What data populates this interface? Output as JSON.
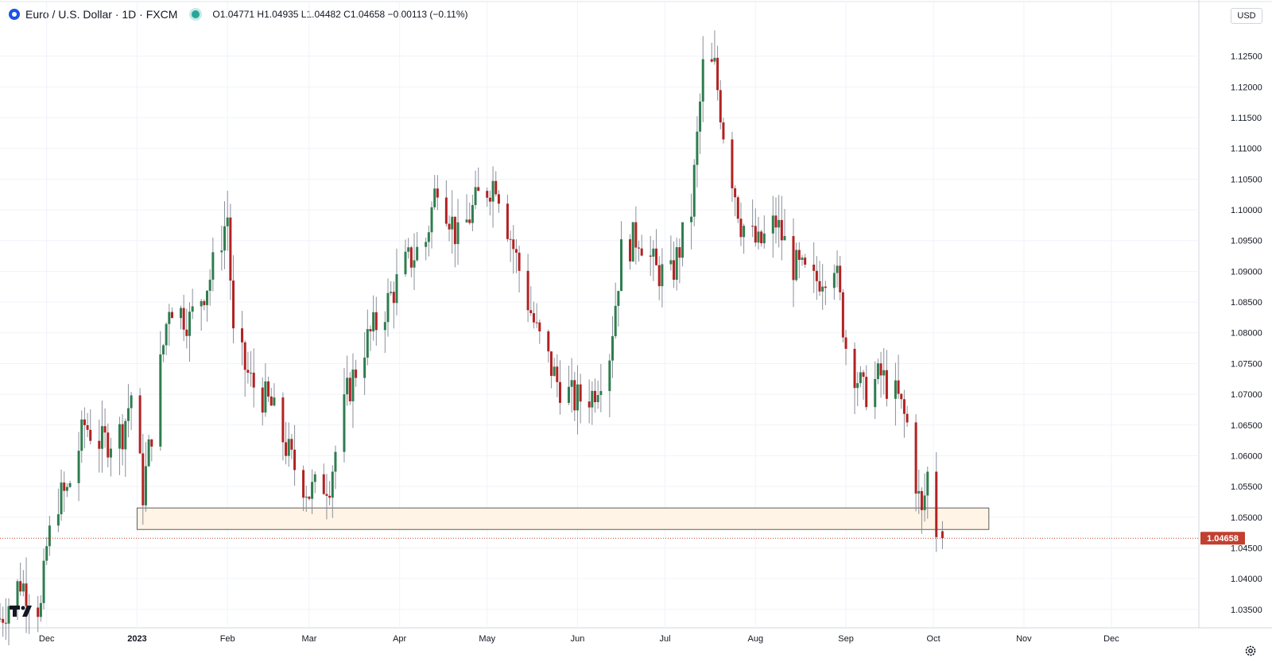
{
  "header": {
    "symbol": "Euro / U.S. Dollar · 1D · FXCM",
    "ohlc": "O1.04771  H1.04935  L1.04482  C1.04658  −0.00113 (−0.11%)"
  },
  "price_scale": {
    "currency": "USD"
  },
  "colors": {
    "up": "#26a69a",
    "down": "#ef5350",
    "up_body": "#2e7d4f",
    "down_body": "#b22222",
    "zone_fill": "#fff4e5",
    "last_price": "#c1402f"
  },
  "icons": {
    "logo": "tradingview-logo-icon",
    "settings": "gear-icon",
    "status": "market-status-dot"
  },
  "chart_data": {
    "type": "candlestick",
    "title": "Euro / U.S. Dollar · 1D · FXCM",
    "last_price": 1.04658,
    "last_price_label": "1.04658",
    "ylim": [
      1.032,
      1.13
    ],
    "y_ticks": [
      1.035,
      1.04,
      1.045,
      1.05,
      1.055,
      1.06,
      1.065,
      1.07,
      1.075,
      1.08,
      1.085,
      1.09,
      1.095,
      1.1,
      1.105,
      1.11,
      1.115,
      1.12,
      1.125
    ],
    "y_tick_labels": [
      "1.03500",
      "1.04000",
      "1.04500",
      "1.05000",
      "1.05500",
      "1.06000",
      "1.06500",
      "1.07000",
      "1.07500",
      "1.08000",
      "1.08500",
      "1.09000",
      "1.09500",
      "1.10000",
      "1.10500",
      "1.11000",
      "1.11500",
      "1.12000",
      "1.12500"
    ],
    "x_labels": [
      {
        "label": "Dec",
        "date": "2022-12-01"
      },
      {
        "label": "2023",
        "date": "2023-01-01"
      },
      {
        "label": "Feb",
        "date": "2023-02-01"
      },
      {
        "label": "Mar",
        "date": "2023-03-01"
      },
      {
        "label": "Apr",
        "date": "2023-04-01"
      },
      {
        "label": "May",
        "date": "2023-05-01"
      },
      {
        "label": "Jun",
        "date": "2023-06-01"
      },
      {
        "label": "Jul",
        "date": "2023-07-01"
      },
      {
        "label": "Aug",
        "date": "2023-08-01"
      },
      {
        "label": "Sep",
        "date": "2023-09-01"
      },
      {
        "label": "Oct",
        "date": "2023-10-01"
      },
      {
        "label": "Nov",
        "date": "2023-11-01"
      },
      {
        "label": "Dec",
        "date": "2023-12-01"
      }
    ],
    "x_range": [
      "2022-11-15",
      "2023-12-31"
    ],
    "support_zone": {
      "start": "2023-01-01",
      "end": "2023-10-20",
      "low": 1.048,
      "high": 1.0515
    },
    "close_series": [
      {
        "date": "2022-11-15",
        "close": 1.0335
      },
      {
        "date": "2022-11-22",
        "close": 1.0395
      },
      {
        "date": "2022-11-29",
        "close": 1.035
      },
      {
        "date": "2022-12-01",
        "close": 1.045
      },
      {
        "date": "2022-12-05",
        "close": 1.053
      },
      {
        "date": "2022-12-08",
        "close": 1.054
      },
      {
        "date": "2022-12-14",
        "close": 1.065
      },
      {
        "date": "2022-12-20",
        "close": 1.062
      },
      {
        "date": "2022-12-27",
        "close": 1.064
      },
      {
        "date": "2022-12-30",
        "close": 1.07
      },
      {
        "date": "2023-01-03",
        "close": 1.054
      },
      {
        "date": "2023-01-06",
        "close": 1.064
      },
      {
        "date": "2023-01-12",
        "close": 1.085
      },
      {
        "date": "2023-01-19",
        "close": 1.082
      },
      {
        "date": "2023-01-26",
        "close": 1.089
      },
      {
        "date": "2023-02-01",
        "close": 1.099
      },
      {
        "date": "2023-02-03",
        "close": 1.079
      },
      {
        "date": "2023-02-09",
        "close": 1.072
      },
      {
        "date": "2023-02-16",
        "close": 1.068
      },
      {
        "date": "2023-02-23",
        "close": 1.059
      },
      {
        "date": "2023-03-01",
        "close": 1.054
      },
      {
        "date": "2023-03-08",
        "close": 1.056
      },
      {
        "date": "2023-03-14",
        "close": 1.07
      },
      {
        "date": "2023-03-20",
        "close": 1.078
      },
      {
        "date": "2023-03-27",
        "close": 1.084
      },
      {
        "date": "2023-04-03",
        "close": 1.091
      },
      {
        "date": "2023-04-10",
        "close": 1.095
      },
      {
        "date": "2023-04-14",
        "close": 1.105
      },
      {
        "date": "2023-04-21",
        "close": 1.095
      },
      {
        "date": "2023-04-28",
        "close": 1.102
      },
      {
        "date": "2023-05-04",
        "close": 1.105
      },
      {
        "date": "2023-05-11",
        "close": 1.092
      },
      {
        "date": "2023-05-18",
        "close": 1.08
      },
      {
        "date": "2023-05-25",
        "close": 1.072
      },
      {
        "date": "2023-05-31",
        "close": 1.069
      },
      {
        "date": "2023-06-06",
        "close": 1.07
      },
      {
        "date": "2023-06-12",
        "close": 1.077
      },
      {
        "date": "2023-06-16",
        "close": 1.093
      },
      {
        "date": "2023-06-22",
        "close": 1.096
      },
      {
        "date": "2023-06-28",
        "close": 1.09
      },
      {
        "date": "2023-07-03",
        "close": 1.089
      },
      {
        "date": "2023-07-10",
        "close": 1.1
      },
      {
        "date": "2023-07-14",
        "close": 1.123
      },
      {
        "date": "2023-07-18",
        "close": 1.123
      },
      {
        "date": "2023-07-21",
        "close": 1.113
      },
      {
        "date": "2023-07-27",
        "close": 1.098
      },
      {
        "date": "2023-08-02",
        "close": 1.094
      },
      {
        "date": "2023-08-08",
        "close": 1.098
      },
      {
        "date": "2023-08-14",
        "close": 1.091
      },
      {
        "date": "2023-08-21",
        "close": 1.088
      },
      {
        "date": "2023-08-28",
        "close": 1.092
      },
      {
        "date": "2023-09-01",
        "close": 1.078
      },
      {
        "date": "2023-09-07",
        "close": 1.07
      },
      {
        "date": "2023-09-13",
        "close": 1.073
      },
      {
        "date": "2023-09-19",
        "close": 1.069
      },
      {
        "date": "2023-09-22",
        "close": 1.065
      },
      {
        "date": "2023-09-27",
        "close": 1.05
      },
      {
        "date": "2023-09-29",
        "close": 1.057
      },
      {
        "date": "2023-10-02",
        "close": 1.048
      },
      {
        "date": "2023-10-03",
        "close": 1.04658
      }
    ]
  }
}
